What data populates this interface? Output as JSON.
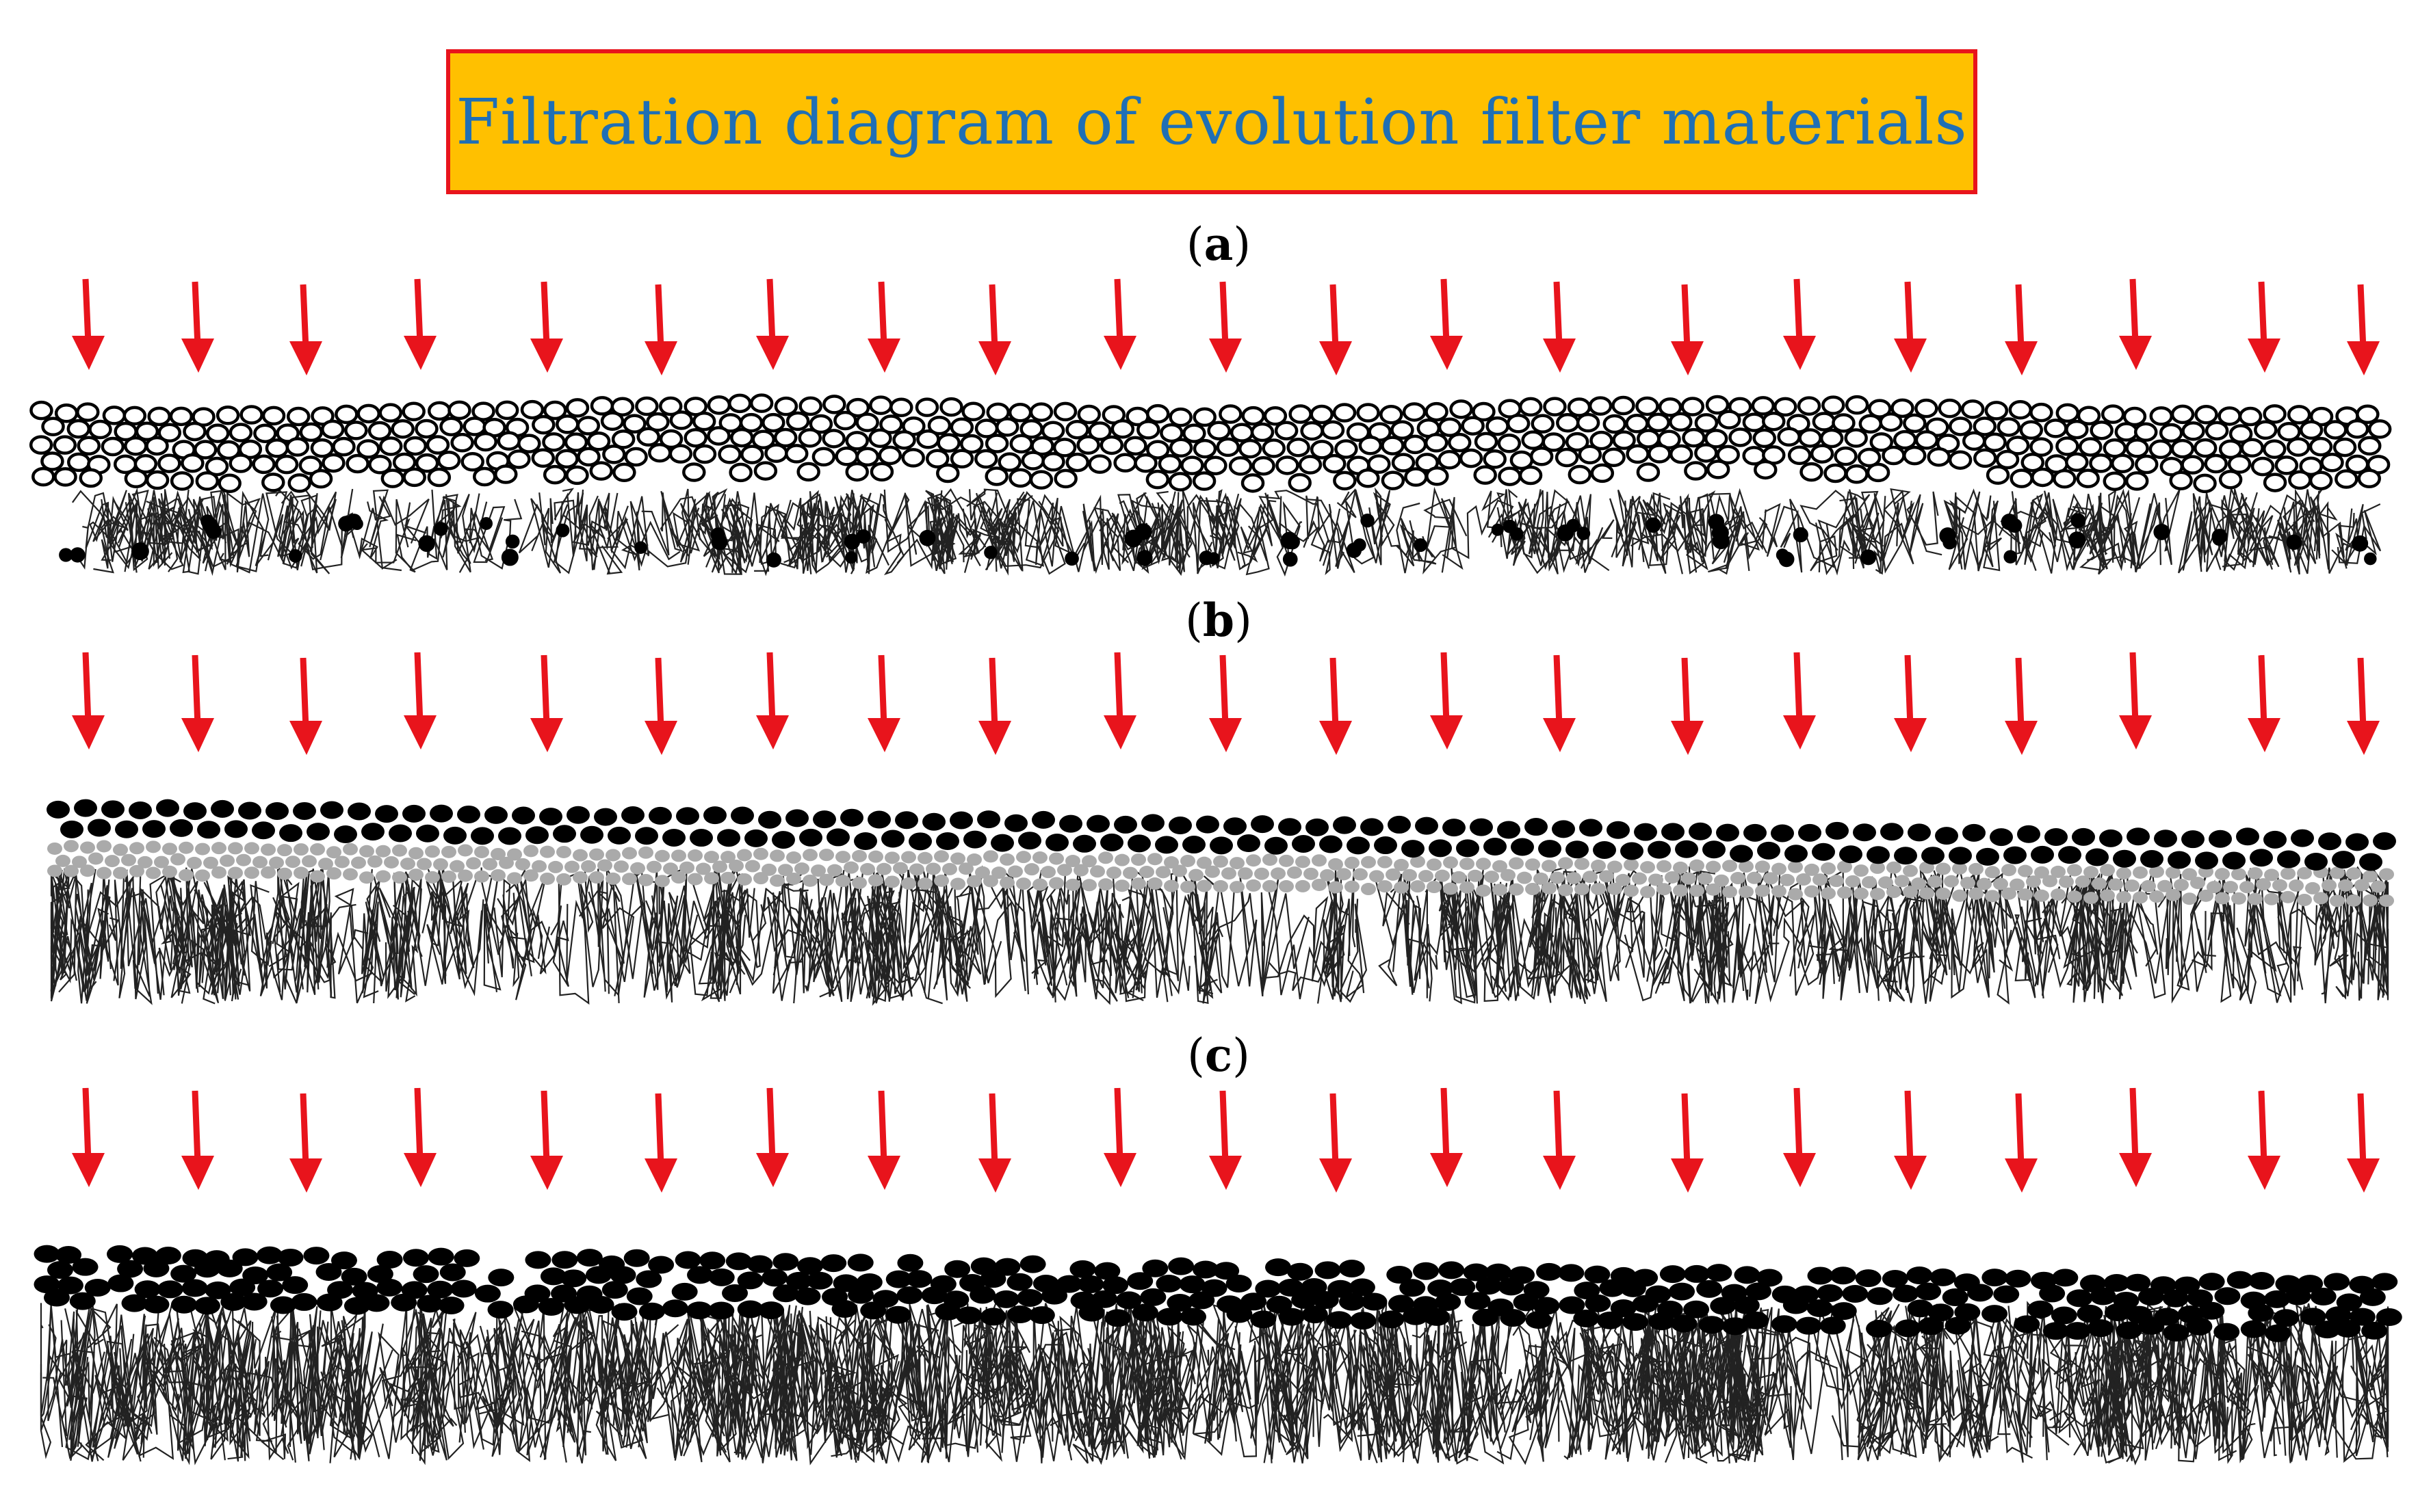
{
  "title": "Filtration diagram of evolution filter materials",
  "colors": {
    "title_box_fill": "#ffc000",
    "title_box_border": "#e8141c",
    "title_text": "#1f6fb5",
    "arrow": "#e8141c",
    "fiber": "#222222",
    "particle_dark": "#000000",
    "particle_light": "#aaaaaa"
  },
  "panels": [
    {
      "id": "a",
      "label_open": "(",
      "label_letter": "a",
      "label_close": ")",
      "description_layers": [
        "open-circle-particle-layer",
        "fiber-layer-with-trapped-particles"
      ]
    },
    {
      "id": "b",
      "label_open": "(",
      "label_letter": "b",
      "label_close": ")",
      "description_layers": [
        "dark-particle-layer",
        "grey-particle-layer",
        "fiber-layer"
      ]
    },
    {
      "id": "c",
      "label_open": "(",
      "label_letter": "c",
      "label_close": ")",
      "description_layers": [
        "dark-particle-cake",
        "dense-fine-fiber-layer"
      ]
    }
  ]
}
